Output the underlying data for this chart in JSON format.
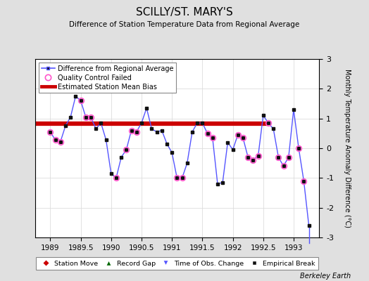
{
  "title": "SCILLY/ST. MARY'S",
  "subtitle": "Difference of Station Temperature Data from Regional Average",
  "ylabel": "Monthly Temperature Anomaly Difference (°C)",
  "xlabel_bottom": "Berkeley Earth",
  "bias_value": 0.82,
  "bias_xstart": 1988.75,
  "bias_xend": 1992.58,
  "ylim": [
    -3,
    3
  ],
  "xlim": [
    1988.75,
    1993.42
  ],
  "background_color": "#e0e0e0",
  "plot_bg_color": "#ffffff",
  "x_ticks": [
    1989,
    1989.5,
    1990,
    1990.5,
    1991,
    1991.5,
    1992,
    1992.5,
    1993
  ],
  "x_tick_labels": [
    "1989",
    "1989.5",
    "1990",
    "1990.5",
    "1991",
    "1991.5",
    "1992",
    "1992.5",
    "1993"
  ],
  "y_ticks": [
    -3,
    -2,
    -1,
    0,
    1,
    2,
    3
  ],
  "data_x": [
    1989.0,
    1989.083,
    1989.167,
    1989.25,
    1989.333,
    1989.417,
    1989.5,
    1989.583,
    1989.667,
    1989.75,
    1989.833,
    1989.917,
    1990.0,
    1990.083,
    1990.167,
    1990.25,
    1990.333,
    1990.417,
    1990.5,
    1990.583,
    1990.667,
    1990.75,
    1990.833,
    1990.917,
    1991.0,
    1991.083,
    1991.167,
    1991.25,
    1991.333,
    1991.417,
    1991.5,
    1991.583,
    1991.667,
    1991.75,
    1991.833,
    1991.917,
    1992.0,
    1992.083,
    1992.167,
    1992.25,
    1992.333,
    1992.417,
    1992.5,
    1992.583,
    1992.667,
    1992.75,
    1992.833,
    1992.917,
    1993.0,
    1993.083,
    1993.167,
    1993.25
  ],
  "data_y": [
    0.55,
    0.28,
    0.22,
    0.75,
    1.05,
    1.75,
    1.6,
    1.05,
    1.05,
    0.65,
    0.85,
    0.28,
    -0.85,
    -1.0,
    -0.3,
    -0.05,
    0.6,
    0.55,
    0.85,
    1.35,
    0.65,
    0.55,
    0.6,
    0.15,
    -0.15,
    -1.0,
    -1.0,
    -0.5,
    0.55,
    0.85,
    0.85,
    0.5,
    0.35,
    -1.2,
    -1.15,
    0.2,
    -0.05,
    0.45,
    0.35,
    -0.3,
    -0.4,
    -0.25,
    1.1,
    0.85,
    0.65,
    -0.3,
    -0.6,
    -0.3,
    1.3,
    0.0,
    -1.1,
    -2.6
  ],
  "qc_failed_x": [
    1989.0,
    1989.083,
    1989.167,
    1989.5,
    1989.583,
    1989.667,
    1990.083,
    1990.25,
    1990.333,
    1990.417,
    1991.083,
    1991.167,
    1991.583,
    1991.667,
    1992.083,
    1992.167,
    1992.25,
    1992.333,
    1992.417,
    1992.583,
    1992.75,
    1992.833,
    1992.917,
    1993.083,
    1993.167
  ],
  "qc_failed_y": [
    0.55,
    0.28,
    0.22,
    1.6,
    1.05,
    1.05,
    -1.0,
    -0.05,
    0.6,
    0.55,
    -1.0,
    -1.0,
    0.5,
    0.35,
    0.45,
    0.35,
    -0.3,
    -0.4,
    -0.25,
    0.85,
    -0.3,
    -0.6,
    -0.3,
    0.0,
    -1.1
  ],
  "obs_change_x": 1993.25,
  "line_color": "#5555ff",
  "marker_color": "#111111",
  "qc_color": "#ff55cc",
  "bias_color": "#cc0000",
  "obs_change_color": "#5555ff",
  "grid_color": "#cccccc",
  "grid_color2": "#dddddd"
}
